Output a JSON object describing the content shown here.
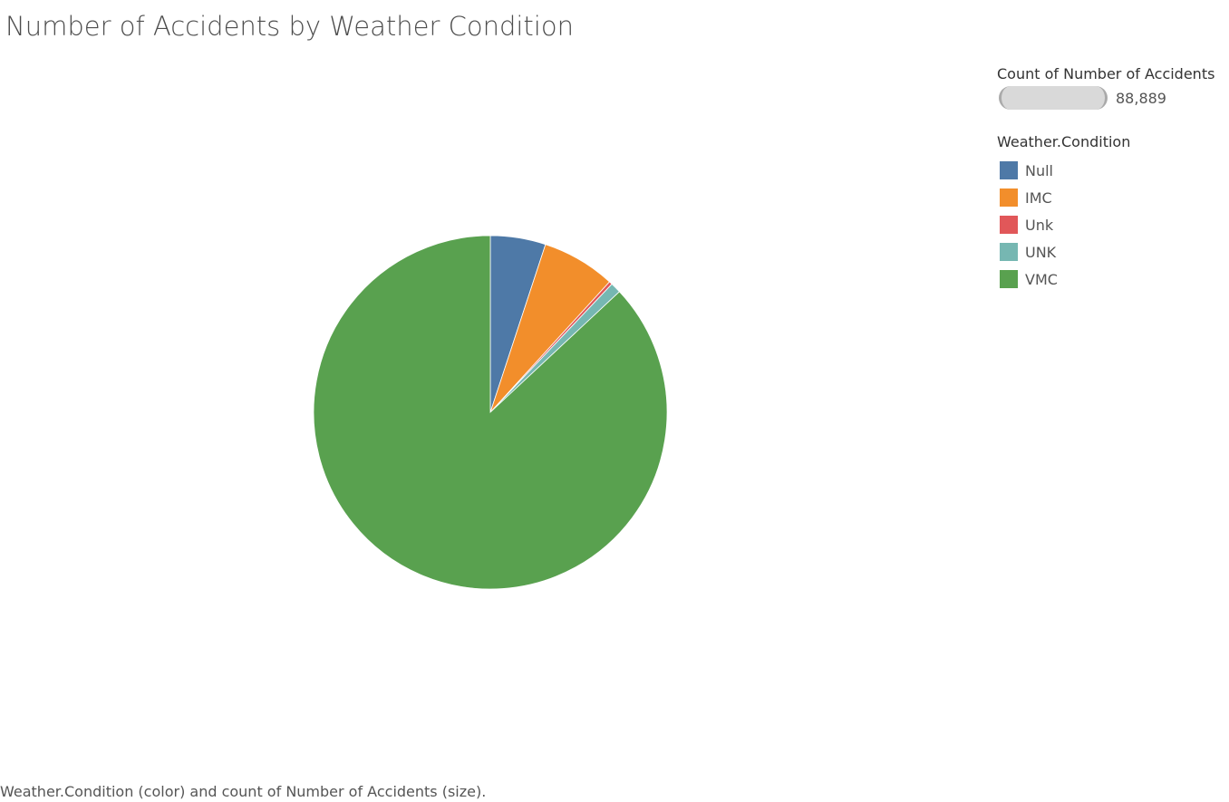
{
  "title": "Number of Accidents by Weather Condition",
  "footnote": "Weather.Condition (color) and count of Number of Accidents (size).",
  "legend": {
    "size_title": "Count of Number of Accidents",
    "size_value": "88,889",
    "color_title": "Weather.Condition"
  },
  "chart_data": {
    "type": "pie",
    "title": "Number of Accidents by Weather Condition",
    "total": 88889,
    "legend_position": "top-right",
    "categories": [
      "Null",
      "IMC",
      "Unk",
      "UNK",
      "VMC"
    ],
    "values": [
      4492,
      5976,
      262,
      856,
      77303
    ],
    "colors": [
      "#4e79a7",
      "#f28e2b",
      "#e15759",
      "#76b7b2",
      "#59a14f"
    ],
    "start_angle": "12 o'clock",
    "direction": "clockwise"
  }
}
